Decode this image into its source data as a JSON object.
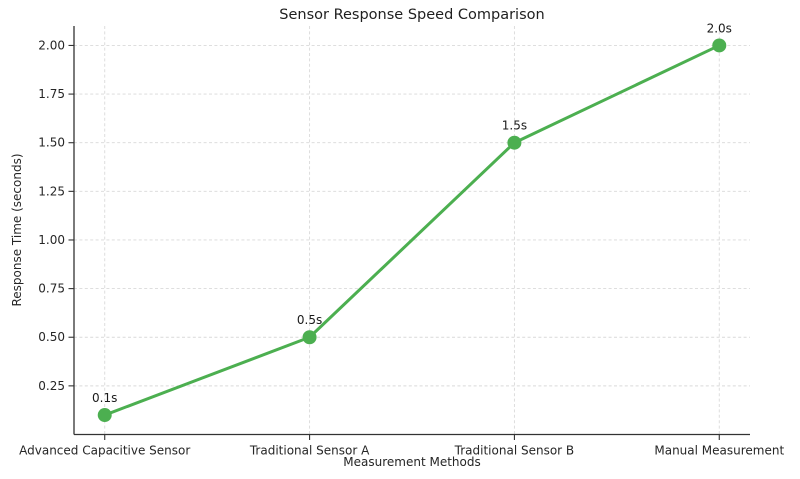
{
  "chart_data": {
    "type": "line",
    "title": "Sensor Response Speed Comparison",
    "xlabel": "Measurement Methods",
    "ylabel": "Response Time (seconds)",
    "categories": [
      "Advanced Capacitive Sensor",
      "Traditional Sensor A",
      "Traditional Sensor B",
      "Manual Measurement"
    ],
    "values": [
      0.1,
      0.5,
      1.5,
      2.0
    ],
    "point_labels": [
      "0.1s",
      "0.5s",
      "1.5s",
      "2.0s"
    ],
    "ytick_values": [
      0.25,
      0.5,
      0.75,
      1.0,
      1.25,
      1.5,
      1.75,
      2.0
    ],
    "ytick_labels": [
      "0.25",
      "0.50",
      "0.75",
      "1.00",
      "1.25",
      "1.50",
      "1.75",
      "2.00"
    ],
    "ylim": [
      0,
      2.1
    ],
    "grid": "dashed, horizontal and vertical",
    "legend": "none",
    "colors": {
      "line": "#4caf50",
      "marker": "#4caf50",
      "grid": "#d9d9d9",
      "spine": "#333333",
      "text": "#262626"
    }
  }
}
